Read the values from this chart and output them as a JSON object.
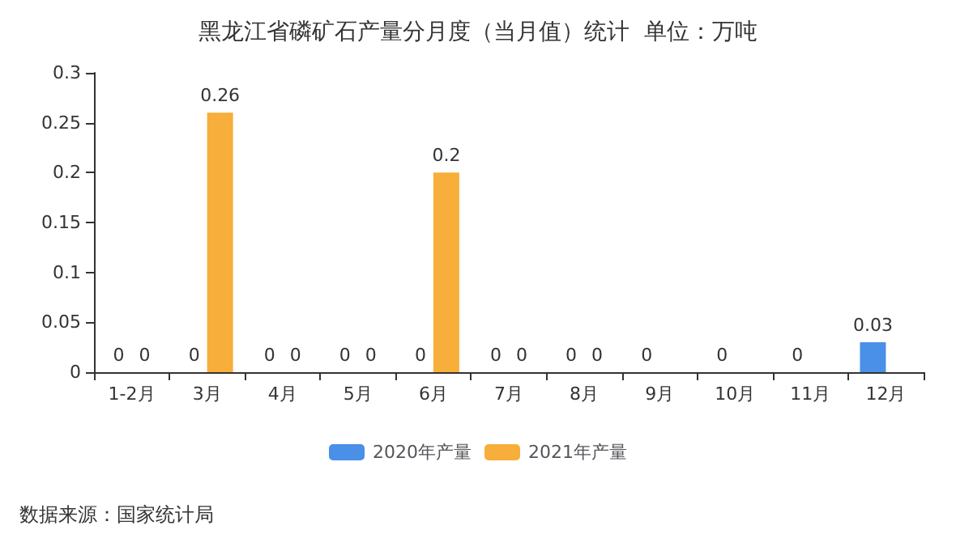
{
  "chart_data": {
    "type": "bar",
    "title": "黑龙江省磷矿石产量分月度（当月值）统计  单位：万吨",
    "categories": [
      "1-2月",
      "3月",
      "4月",
      "5月",
      "6月",
      "7月",
      "8月",
      "9月",
      "10月",
      "11月",
      "12月"
    ],
    "series": [
      {
        "name": "2020年产量",
        "color": "#4a8fe8",
        "values": [
          0,
          0,
          0,
          0,
          0,
          0,
          0,
          0,
          0,
          0,
          0.03
        ]
      },
      {
        "name": "2021年产量",
        "color": "#f7ae3b",
        "values": [
          0,
          0.26,
          0,
          0,
          0.2,
          0,
          0,
          null,
          null,
          null,
          null
        ]
      }
    ],
    "ylim": [
      0,
      0.3
    ],
    "yticks": [
      0,
      0.05,
      0.1,
      0.15,
      0.2,
      0.25,
      0.3
    ],
    "grid": false,
    "legend": "bottom",
    "data_labels": true,
    "annotations": [
      "数据来源：国家统计局"
    ]
  }
}
